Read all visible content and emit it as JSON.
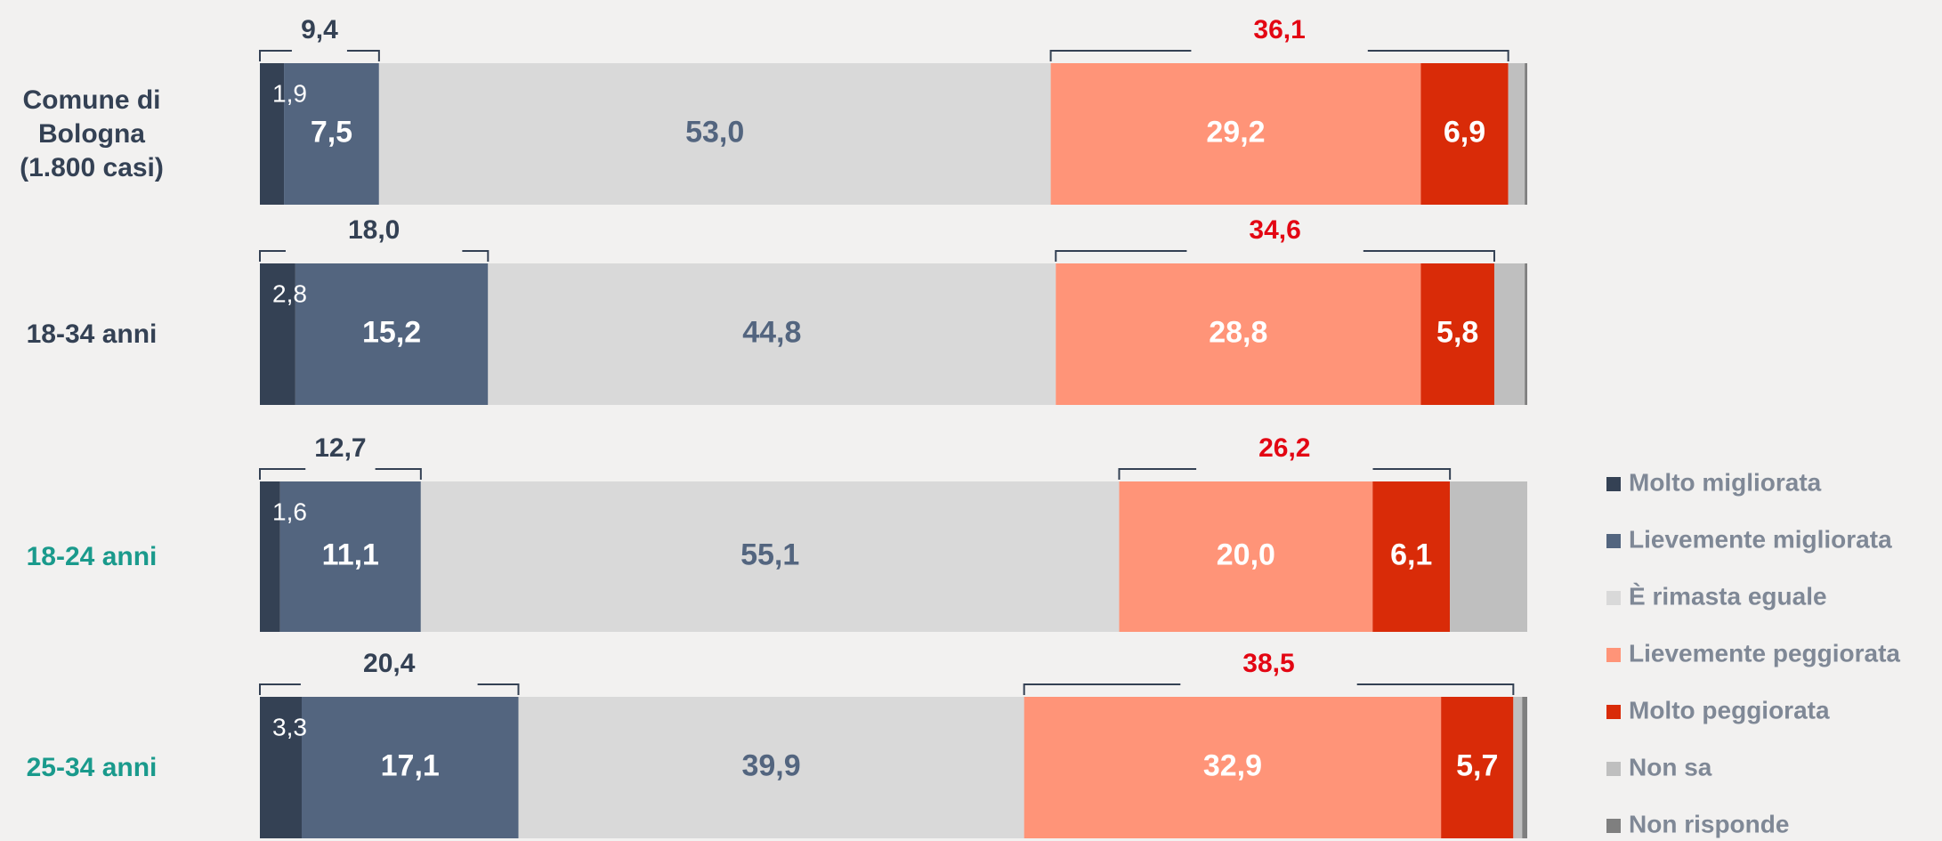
{
  "chart_data": {
    "type": "stacked-bar-horizontal",
    "categories": [
      "Comune di Bologna (1.800 casi)",
      "18-34 anni",
      "18-24 anni",
      "25-34 anni"
    ],
    "category_colors": [
      "#344154",
      "#344154",
      "#1a9a8c",
      "#1a9a8c"
    ],
    "xlim": [
      0,
      100
    ],
    "series": [
      {
        "name": "Molto migliorata",
        "color": "#344154",
        "values": [
          1.9,
          2.8,
          1.6,
          3.3
        ],
        "value_labels": [
          "1,9",
          "2,8",
          "1,6",
          "3,3"
        ]
      },
      {
        "name": "Lievemente migliorata",
        "color": "#53657f",
        "values": [
          7.5,
          15.2,
          11.1,
          17.1
        ],
        "value_labels": [
          "7,5",
          "15,2",
          "11,1",
          "17,1"
        ]
      },
      {
        "name": "È rimasta eguale",
        "color": "#d9d9d9",
        "values": [
          53.0,
          44.8,
          55.1,
          39.9
        ],
        "value_labels": [
          "53,0",
          "44,8",
          "55,1",
          "39,9"
        ]
      },
      {
        "name": "Lievemente peggiorata",
        "color": "#ff9478",
        "values": [
          29.2,
          28.8,
          20.0,
          32.9
        ],
        "value_labels": [
          "29,2",
          "28,8",
          "20,0",
          "32,9"
        ]
      },
      {
        "name": "Molto peggiorata",
        "color": "#d92b08",
        "values": [
          6.9,
          5.8,
          6.1,
          5.7
        ],
        "value_labels": [
          "6,9",
          "5,8",
          "6,1",
          "5,7"
        ]
      },
      {
        "name": "Non sa",
        "color": "#bfbfbf",
        "values": [
          1.3,
          2.4,
          6.1,
          0.7
        ]
      },
      {
        "name": "Non risponde",
        "color": "#7f7f7f",
        "values": [
          0.2,
          0.2,
          0,
          0.4
        ]
      }
    ],
    "annotations": {
      "improved": {
        "color": "#344154",
        "values": [
          9.4,
          18.0,
          12.7,
          20.4
        ],
        "value_labels": [
          "9,4",
          "18,0",
          "12,7",
          "20,4"
        ]
      },
      "worsened": {
        "color": "#e30613",
        "values": [
          36.1,
          34.6,
          26.2,
          38.5
        ],
        "value_labels": [
          "36,1",
          "34,6",
          "26,2",
          "38,5"
        ]
      }
    },
    "legend": "right"
  }
}
